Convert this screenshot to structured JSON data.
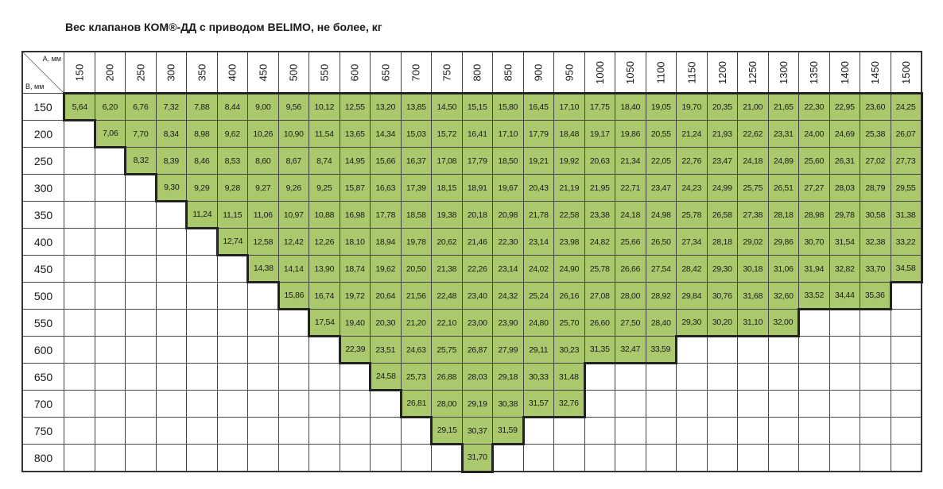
{
  "title": "Вес клапанов КОМ®-ДД с приводом  BELIMO, не более, кг",
  "corner": {
    "a": "А, мм",
    "b": "В, мм"
  },
  "columns": [
    "150",
    "200",
    "250",
    "300",
    "350",
    "400",
    "450",
    "500",
    "550",
    "600",
    "650",
    "700",
    "750",
    "800",
    "850",
    "900",
    "950",
    "1000",
    "1050",
    "1100",
    "1150",
    "1200",
    "1250",
    "1300",
    "1350",
    "1400",
    "1450",
    "1500"
  ],
  "rows": [
    {
      "label": "150",
      "cells": [
        "5,64",
        "6,20",
        "6,76",
        "7,32",
        "7,88",
        "8,44",
        "9,00",
        "9,56",
        "10,12",
        "12,55",
        "13,20",
        "13,85",
        "14,50",
        "15,15",
        "15,80",
        "16,45",
        "17,10",
        "17,75",
        "18,40",
        "19,05",
        "19,70",
        "20,35",
        "21,00",
        "21,65",
        "22,30",
        "22,95",
        "23,60",
        "24,25"
      ]
    },
    {
      "label": "200",
      "cells": [
        null,
        "7,06",
        "7,70",
        "8,34",
        "8,98",
        "9,62",
        "10,26",
        "10,90",
        "11,54",
        "13,65",
        "14,34",
        "15,03",
        "15,72",
        "16,41",
        "17,10",
        "17,79",
        "18,48",
        "19,17",
        "19,86",
        "20,55",
        "21,24",
        "21,93",
        "22,62",
        "23,31",
        "24,00",
        "24,69",
        "25,38",
        "26,07"
      ]
    },
    {
      "label": "250",
      "cells": [
        null,
        null,
        "8,32",
        "8,39",
        "8,46",
        "8,53",
        "8,60",
        "8,67",
        "8,74",
        "14,95",
        "15,66",
        "16,37",
        "17,08",
        "17,79",
        "18,50",
        "19,21",
        "19,92",
        "20,63",
        "21,34",
        "22,05",
        "22,76",
        "23,47",
        "24,18",
        "24,89",
        "25,60",
        "26,31",
        "27,02",
        "27,73"
      ]
    },
    {
      "label": "300",
      "cells": [
        null,
        null,
        null,
        "9,30",
        "9,29",
        "9,28",
        "9,27",
        "9,26",
        "9,25",
        "15,87",
        "16,63",
        "17,39",
        "18,15",
        "18,91",
        "19,67",
        "20,43",
        "21,19",
        "21,95",
        "22,71",
        "23,47",
        "24,23",
        "24,99",
        "25,75",
        "26,51",
        "27,27",
        "28,03",
        "28,79",
        "29,55"
      ]
    },
    {
      "label": "350",
      "cells": [
        null,
        null,
        null,
        null,
        "11,24",
        "11,15",
        "11,06",
        "10,97",
        "10,88",
        "16,98",
        "17,78",
        "18,58",
        "19,38",
        "20,18",
        "20,98",
        "21,78",
        "22,58",
        "23,38",
        "24,18",
        "24,98",
        "25,78",
        "26,58",
        "27,38",
        "28,18",
        "28,98",
        "29,78",
        "30,58",
        "31,38"
      ]
    },
    {
      "label": "400",
      "cells": [
        null,
        null,
        null,
        null,
        null,
        "12,74",
        "12,58",
        "12,42",
        "12,26",
        "18,10",
        "18,94",
        "19,78",
        "20,62",
        "21,46",
        "22,30",
        "23,14",
        "23,98",
        "24,82",
        "25,66",
        "26,50",
        "27,34",
        "28,18",
        "29,02",
        "29,86",
        "30,70",
        "31,54",
        "32,38",
        "33,22"
      ]
    },
    {
      "label": "450",
      "cells": [
        null,
        null,
        null,
        null,
        null,
        null,
        "14,38",
        "14,14",
        "13,90",
        "18,74",
        "19,62",
        "20,50",
        "21,38",
        "22,26",
        "23,14",
        "24,02",
        "24,90",
        "25,78",
        "26,66",
        "27,54",
        "28,42",
        "29,30",
        "30,18",
        "31,06",
        "31,94",
        "32,82",
        "33,70",
        "34,58"
      ]
    },
    {
      "label": "500",
      "cells": [
        null,
        null,
        null,
        null,
        null,
        null,
        null,
        "15,86",
        "16,74",
        "19,72",
        "20,64",
        "21,56",
        "22,48",
        "23,40",
        "24,32",
        "25,24",
        "26,16",
        "27,08",
        "28,00",
        "28,92",
        "29,84",
        "30,76",
        "31,68",
        "32,60",
        "33,52",
        "34,44",
        "35,36",
        null
      ]
    },
    {
      "label": "550",
      "cells": [
        null,
        null,
        null,
        null,
        null,
        null,
        null,
        null,
        "17,54",
        "19,40",
        "20,30",
        "21,20",
        "22,10",
        "23,00",
        "23,90",
        "24,80",
        "25,70",
        "26,60",
        "27,50",
        "28,40",
        "29,30",
        "30,20",
        "31,10",
        "32,00",
        null,
        null,
        null,
        null
      ]
    },
    {
      "label": "600",
      "cells": [
        null,
        null,
        null,
        null,
        null,
        null,
        null,
        null,
        null,
        "22,39",
        "23,51",
        "24,63",
        "25,75",
        "26,87",
        "27,99",
        "29,11",
        "30,23",
        "31,35",
        "32,47",
        "33,59",
        null,
        null,
        null,
        null,
        null,
        null,
        null,
        null
      ]
    },
    {
      "label": "650",
      "cells": [
        null,
        null,
        null,
        null,
        null,
        null,
        null,
        null,
        null,
        null,
        "24,58",
        "25,73",
        "26,88",
        "28,03",
        "29,18",
        "30,33",
        "31,48",
        null,
        null,
        null,
        null,
        null,
        null,
        null,
        null,
        null,
        null,
        null
      ]
    },
    {
      "label": "700",
      "cells": [
        null,
        null,
        null,
        null,
        null,
        null,
        null,
        null,
        null,
        null,
        null,
        "26,81",
        "28,00",
        "29,19",
        "30,38",
        "31,57",
        "32,76",
        null,
        null,
        null,
        null,
        null,
        null,
        null,
        null,
        null,
        null,
        null
      ]
    },
    {
      "label": "750",
      "cells": [
        null,
        null,
        null,
        null,
        null,
        null,
        null,
        null,
        null,
        null,
        null,
        null,
        "29,15",
        "30,37",
        "31,59",
        null,
        null,
        null,
        null,
        null,
        null,
        null,
        null,
        null,
        null,
        null,
        null,
        null
      ]
    },
    {
      "label": "800",
      "cells": [
        null,
        null,
        null,
        null,
        null,
        null,
        null,
        null,
        null,
        null,
        null,
        null,
        null,
        "31,70",
        null,
        null,
        null,
        null,
        null,
        null,
        null,
        null,
        null,
        null,
        null,
        null,
        null,
        null
      ]
    }
  ]
}
